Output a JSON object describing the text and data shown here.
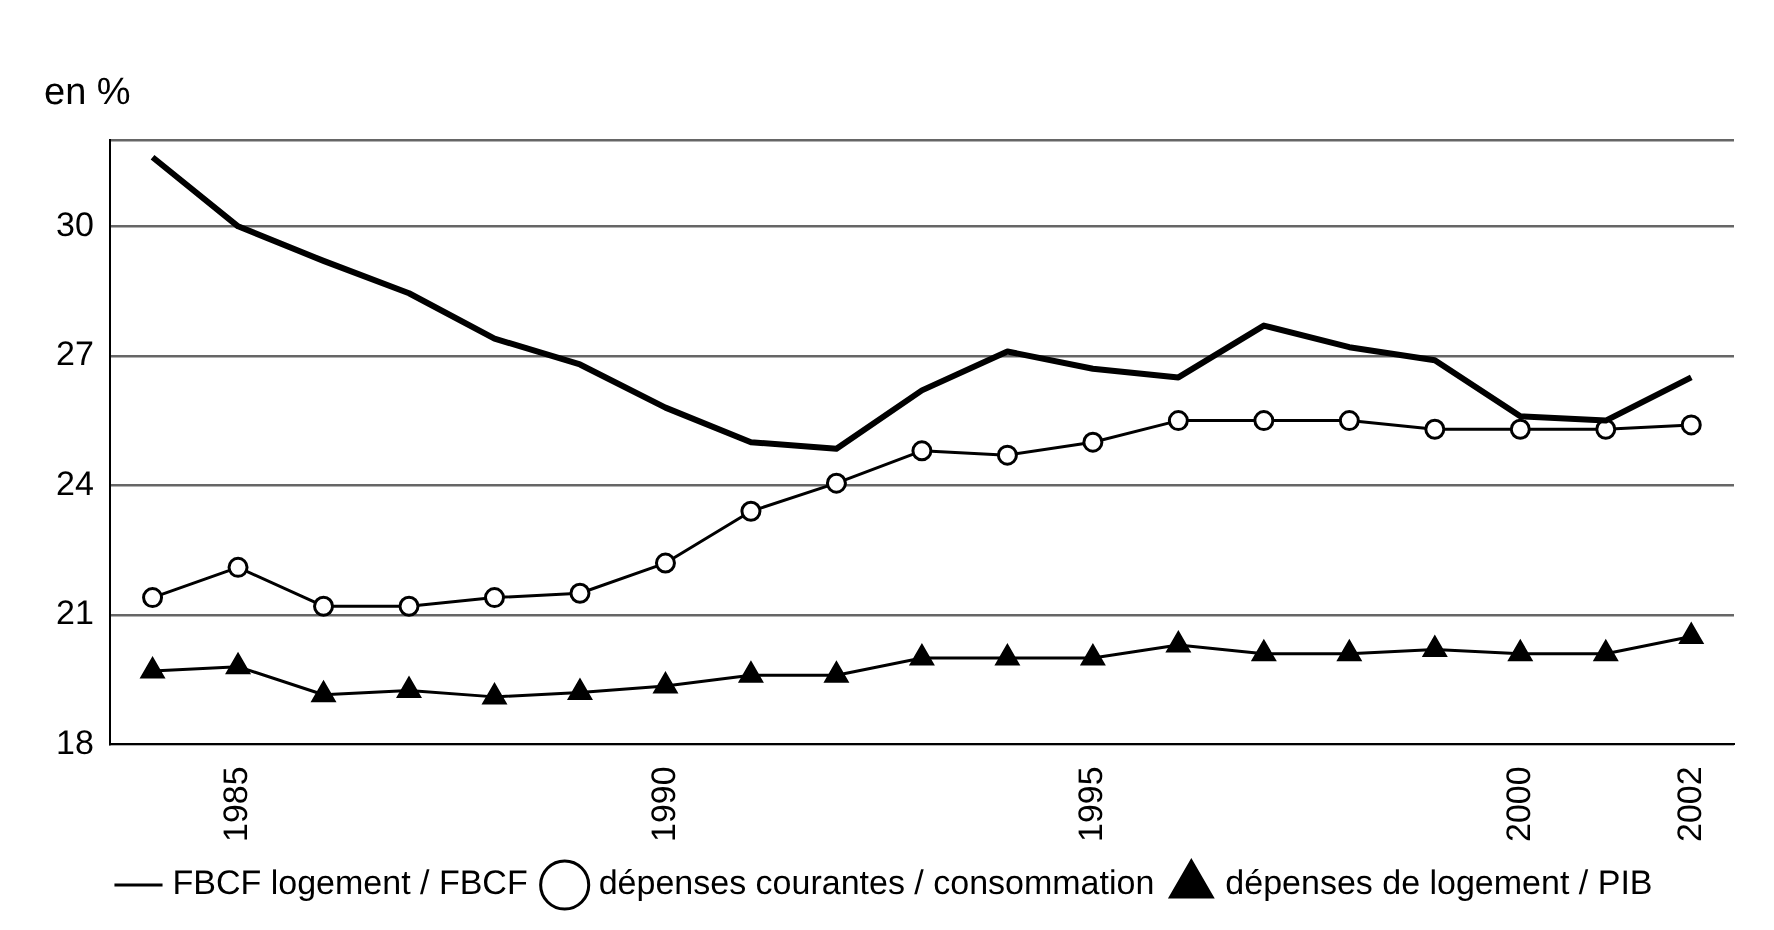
{
  "chart_data": {
    "type": "line",
    "ylabel": "en %",
    "categories": [
      null,
      "1985",
      null,
      null,
      null,
      null,
      "1990",
      null,
      null,
      null,
      null,
      "1995",
      null,
      null,
      null,
      null,
      "2000",
      null,
      "2002"
    ],
    "series": [
      {
        "name": "FBCF logement / FBCF",
        "color": "#000000",
        "marker": "none",
        "values": [
          31.6,
          30.0,
          29.2,
          28.45,
          27.4,
          26.8,
          25.8,
          25.0,
          24.85,
          26.2,
          27.1,
          26.7,
          26.5,
          27.7,
          27.2,
          26.9,
          25.6,
          25.5,
          26.5
        ]
      },
      {
        "name": "dépenses courantes / consommation",
        "color": "#000000",
        "marker": "circle",
        "values": [
          21.4,
          22.1,
          21.2,
          21.2,
          21.4,
          21.5,
          22.2,
          23.4,
          24.05,
          24.8,
          24.7,
          25.0,
          25.5,
          25.5,
          25.5,
          25.3,
          25.3,
          25.3,
          25.4
        ]
      },
      {
        "name": "dépenses de logement / PIB",
        "color": "#000000",
        "marker": "triangle",
        "values": [
          19.7,
          19.8,
          19.15,
          19.25,
          19.1,
          19.2,
          19.35,
          19.6,
          19.6,
          20.0,
          20.0,
          20.0,
          20.3,
          20.1,
          20.1,
          20.2,
          20.1,
          20.1,
          20.5
        ]
      }
    ],
    "ylim": [
      18,
      32
    ],
    "yticks": [
      18,
      21,
      24,
      27,
      30,
      {
        "value": 32,
        "label": null
      }
    ],
    "grid": "y",
    "legend": "bottom",
    "line_style": "solid"
  }
}
